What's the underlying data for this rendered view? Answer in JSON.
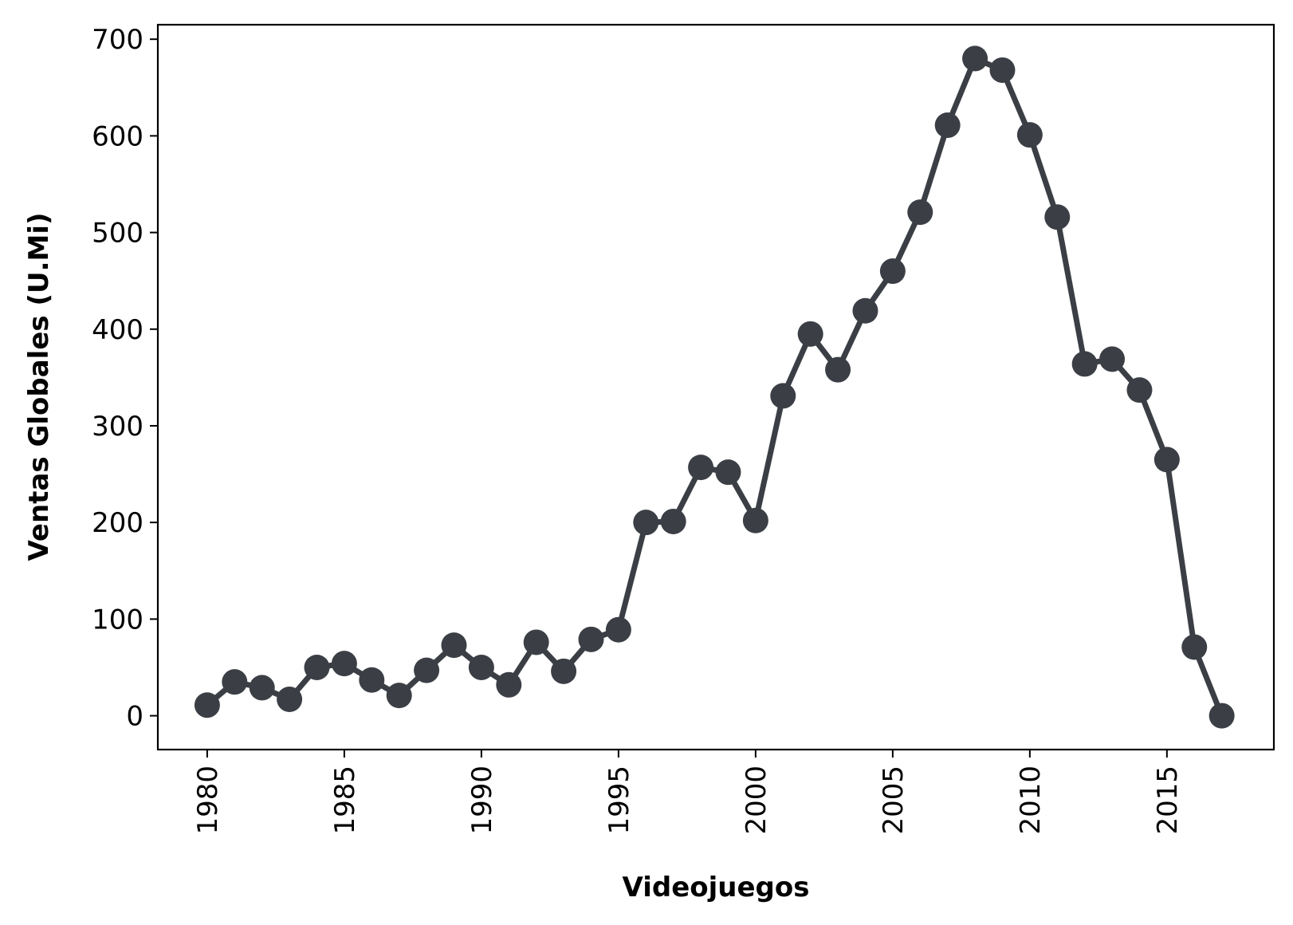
{
  "chart_data": {
    "type": "line",
    "xlabel": "Videojuegos",
    "ylabel": "Ventas Globales (U.Mi)",
    "xlim": [
      1978.2,
      2018.9
    ],
    "ylim": [
      -35,
      715
    ],
    "xticks": [
      1980,
      1985,
      1990,
      1995,
      2000,
      2005,
      2010,
      2015
    ],
    "yticks": [
      0,
      100,
      200,
      300,
      400,
      500,
      600,
      700
    ],
    "grid": false,
    "color": "#3b3f45",
    "series": [
      {
        "x": [
          1980,
          1981,
          1982,
          1983,
          1984,
          1985,
          1986,
          1987,
          1988,
          1989,
          1990,
          1991,
          1992,
          1993,
          1994,
          1995,
          1996,
          1997,
          1998,
          1999,
          2000,
          2001,
          2002,
          2003,
          2004,
          2005,
          2006,
          2007,
          2008,
          2009,
          2010,
          2011,
          2012,
          2013,
          2014,
          2015,
          2016,
          2017
        ],
        "values": [
          11,
          35,
          29,
          17,
          50,
          54,
          37,
          21,
          47,
          73,
          50,
          32,
          76,
          46,
          79,
          89,
          200,
          201,
          257,
          252,
          202,
          331,
          395,
          358,
          419,
          460,
          521,
          611,
          680,
          668,
          601,
          516,
          364,
          369,
          337,
          265,
          71,
          0
        ]
      }
    ]
  }
}
